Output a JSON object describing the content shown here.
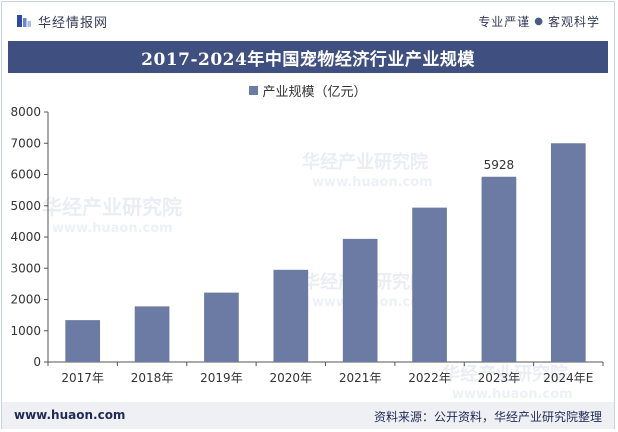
{
  "header": {
    "logo_text": "华经情报网",
    "slogan_left": "专业严谨",
    "slogan_right": "客观科学"
  },
  "chart_data": {
    "type": "bar",
    "title": "2017-2024年中国宠物经济行业产业规模",
    "legend": [
      "产业规模（亿元）"
    ],
    "categories": [
      "2017年",
      "2018年",
      "2019年",
      "2020年",
      "2021年",
      "2022年",
      "2023年",
      "2024年E"
    ],
    "series": [
      {
        "name": "产业规模（亿元）",
        "values": [
          1340,
          1780,
          2220,
          2950,
          3940,
          4940,
          5928,
          7000
        ]
      }
    ],
    "data_labels": [
      {
        "category": "2023年",
        "label": "5928"
      }
    ],
    "yticks": [
      "0",
      "1000",
      "2000",
      "3000",
      "4000",
      "5000",
      "6000",
      "7000",
      "8000"
    ],
    "ylim": [
      0,
      8000
    ],
    "grid": false,
    "legend_position": "top-center",
    "colors": {
      "bar": "#6c7ba4"
    }
  },
  "watermark": {
    "cn": "华经产业研究院",
    "en": "www.huaon.com"
  },
  "footer": {
    "website": "www.huaon.com",
    "source": "资料来源：公开资料，华经产业研究院整理"
  }
}
